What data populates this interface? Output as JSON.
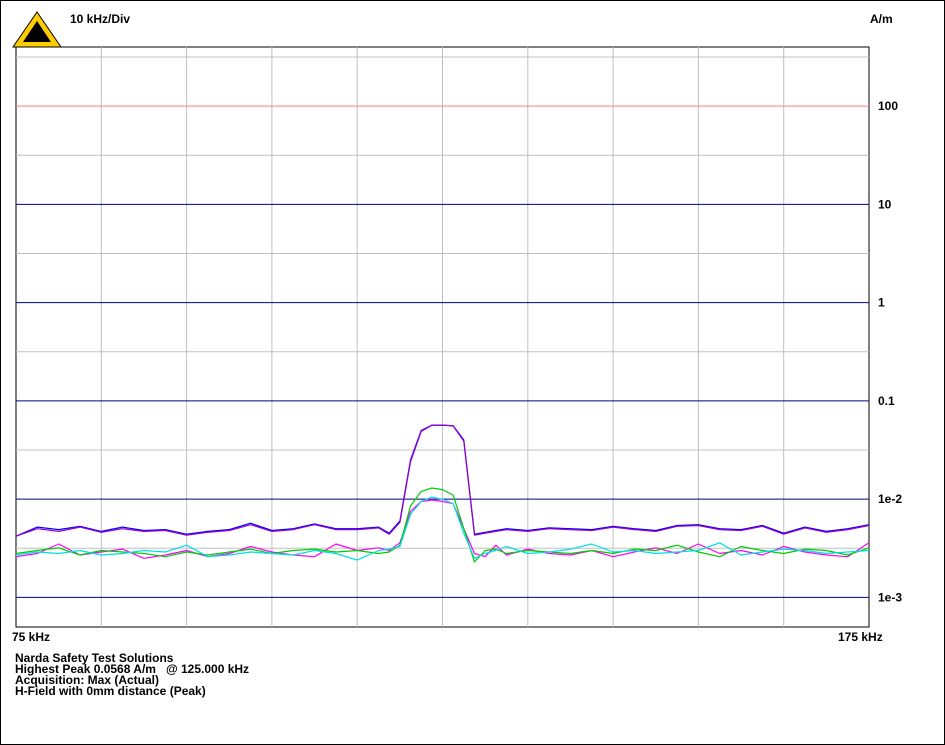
{
  "header": {
    "div_label": "10 kHz/Div",
    "unit_label": "A/m",
    "icon": "warning-triangle-icon"
  },
  "footer": {
    "lines": [
      "Narda Safety Test Solutions",
      "Highest Peak 0.0568 A/m   @ 125.000 kHz",
      "Acquisition: Max (Actual)",
      "H-Field with 0mm distance (Peak)"
    ]
  },
  "colors": {
    "limit_line": "#ff7f7f",
    "decade_line": "#000080",
    "grid": "#c0c0c0",
    "icon_fill": "#ffcc00"
  },
  "chart_data": {
    "type": "line",
    "title": "",
    "xlabel": "",
    "ylabel": "A/m",
    "xlim": [
      75,
      175
    ],
    "x_tick_labels": [
      "75 kHz",
      "175 kHz"
    ],
    "x_divisions": 10,
    "ylim": [
      0.0005,
      400
    ],
    "y_scale": "log",
    "y_tick_values": [
      100,
      10,
      1,
      0.1,
      0.01,
      0.001
    ],
    "y_tick_labels": [
      "100",
      "10",
      "1",
      "0.1",
      "1e-2",
      "1e-3"
    ],
    "limit_line": 100,
    "grid": true,
    "x": [
      75,
      77.5,
      80,
      82.5,
      85,
      87.5,
      90,
      92.5,
      95,
      97.5,
      100,
      102.5,
      105,
      107.5,
      110,
      112.5,
      115,
      117.5,
      118.75,
      120,
      121.25,
      122.5,
      123.75,
      125,
      126.25,
      127.5,
      128.75,
      130,
      131.25,
      132.5,
      135,
      137.5,
      140,
      142.5,
      145,
      147.5,
      150,
      152.5,
      155,
      157.5,
      160,
      162.5,
      165,
      167.5,
      170,
      172.5,
      175
    ],
    "series": [
      {
        "color": "#0000ff",
        "values": [
          0.0042,
          0.0052,
          0.0049,
          0.0053,
          0.0047,
          0.0052,
          0.0048,
          0.0049,
          0.0044,
          0.0047,
          0.0049,
          0.0057,
          0.0048,
          0.005,
          0.0056,
          0.005,
          0.005,
          0.0052,
          0.0045,
          0.006,
          0.025,
          0.05,
          0.0568,
          0.0568,
          0.056,
          0.04,
          0.0044,
          0.0046,
          0.0048,
          0.005,
          0.0048,
          0.0051,
          0.005,
          0.0049,
          0.0053,
          0.005,
          0.0048,
          0.0054,
          0.0055,
          0.005,
          0.0049,
          0.0054,
          0.0045,
          0.0052,
          0.0047,
          0.005,
          0.0055
        ]
      },
      {
        "color": "#9900cc",
        "values": [
          0.0042,
          0.005,
          0.0047,
          0.0052,
          0.0046,
          0.005,
          0.0047,
          0.0048,
          0.0043,
          0.0046,
          0.0048,
          0.0055,
          0.0047,
          0.0049,
          0.0055,
          0.0049,
          0.0049,
          0.0051,
          0.0044,
          0.0058,
          0.024,
          0.049,
          0.0565,
          0.0566,
          0.0555,
          0.039,
          0.0043,
          0.0045,
          0.0047,
          0.0049,
          0.0047,
          0.005,
          0.0049,
          0.0048,
          0.0052,
          0.0049,
          0.0047,
          0.0053,
          0.0054,
          0.0049,
          0.0048,
          0.0053,
          0.0044,
          0.0051,
          0.0046,
          0.0049,
          0.0054
        ]
      },
      {
        "color": "#ff00ff",
        "values": [
          0.0026,
          0.0028,
          0.0035,
          0.0027,
          0.0029,
          0.0031,
          0.0025,
          0.0027,
          0.003,
          0.0026,
          0.0028,
          0.0033,
          0.0029,
          0.0027,
          0.0026,
          0.0035,
          0.003,
          0.0032,
          0.003,
          0.0036,
          0.0075,
          0.0095,
          0.0098,
          0.0095,
          0.009,
          0.005,
          0.0028,
          0.0026,
          0.0034,
          0.0027,
          0.0031,
          0.0028,
          0.0027,
          0.003,
          0.0026,
          0.0029,
          0.0032,
          0.0028,
          0.0035,
          0.0028,
          0.003,
          0.0027,
          0.0033,
          0.0029,
          0.0027,
          0.0026,
          0.0036
        ]
      },
      {
        "color": "#00cc00",
        "values": [
          0.0028,
          0.003,
          0.0032,
          0.0027,
          0.003,
          0.0029,
          0.0028,
          0.0026,
          0.0029,
          0.0027,
          0.0029,
          0.0031,
          0.0028,
          0.003,
          0.0031,
          0.0029,
          0.003,
          0.0028,
          0.0029,
          0.0034,
          0.0085,
          0.012,
          0.013,
          0.0125,
          0.011,
          0.005,
          0.0023,
          0.003,
          0.0031,
          0.0028,
          0.003,
          0.0029,
          0.0028,
          0.003,
          0.0028,
          0.0031,
          0.003,
          0.0034,
          0.0029,
          0.0026,
          0.0033,
          0.003,
          0.0028,
          0.0031,
          0.003,
          0.0027,
          0.0032
        ]
      },
      {
        "color": "#00e0e0",
        "values": [
          0.0027,
          0.0029,
          0.0028,
          0.003,
          0.0027,
          0.0028,
          0.003,
          0.0029,
          0.0034,
          0.0026,
          0.0027,
          0.0029,
          0.0028,
          0.0027,
          0.003,
          0.0028,
          0.0024,
          0.003,
          0.0031,
          0.0033,
          0.007,
          0.0095,
          0.0105,
          0.01,
          0.009,
          0.0045,
          0.0025,
          0.0028,
          0.003,
          0.0033,
          0.0028,
          0.0029,
          0.0031,
          0.0035,
          0.0029,
          0.003,
          0.0028,
          0.0029,
          0.003,
          0.0036,
          0.0027,
          0.0029,
          0.0031,
          0.003,
          0.0028,
          0.0029,
          0.003
        ]
      }
    ]
  }
}
